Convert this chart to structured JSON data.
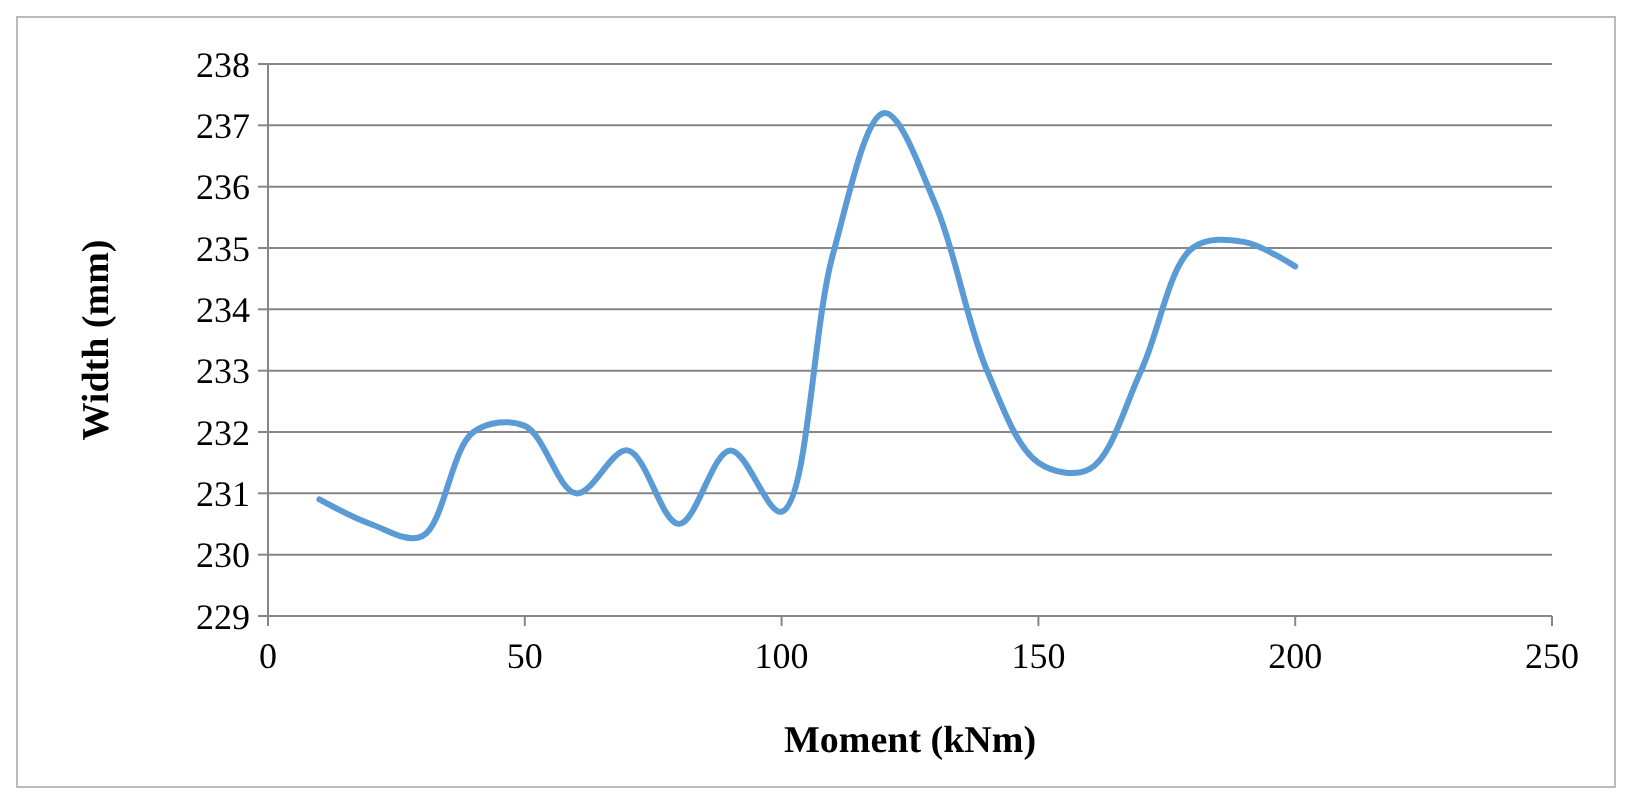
{
  "chart_data": {
    "type": "line",
    "xlabel": "Moment (kNm)",
    "ylabel": "Width (mm)",
    "xlim": [
      0,
      250
    ],
    "xticks": [
      0,
      50,
      100,
      150,
      200,
      250
    ],
    "ylim": [
      229,
      238
    ],
    "yticks": [
      229,
      230,
      231,
      232,
      233,
      234,
      235,
      236,
      237,
      238
    ],
    "grid": "y",
    "marker": "none",
    "line_style": "solid",
    "series": [
      {
        "color": "#5b9bd5",
        "x": [
          10,
          20,
          30,
          40,
          50,
          60,
          70,
          80,
          90,
          100,
          110,
          120,
          130,
          140,
          150,
          160,
          170,
          180,
          190,
          200
        ],
        "values": [
          230.9,
          230.5,
          230.3,
          232.0,
          232.1,
          231.0,
          231.7,
          230.5,
          231.7,
          230.7,
          234.9,
          237.2,
          235.7,
          233.0,
          231.5,
          231.4,
          233.0,
          235.0,
          235.1,
          234.7
        ]
      }
    ]
  }
}
